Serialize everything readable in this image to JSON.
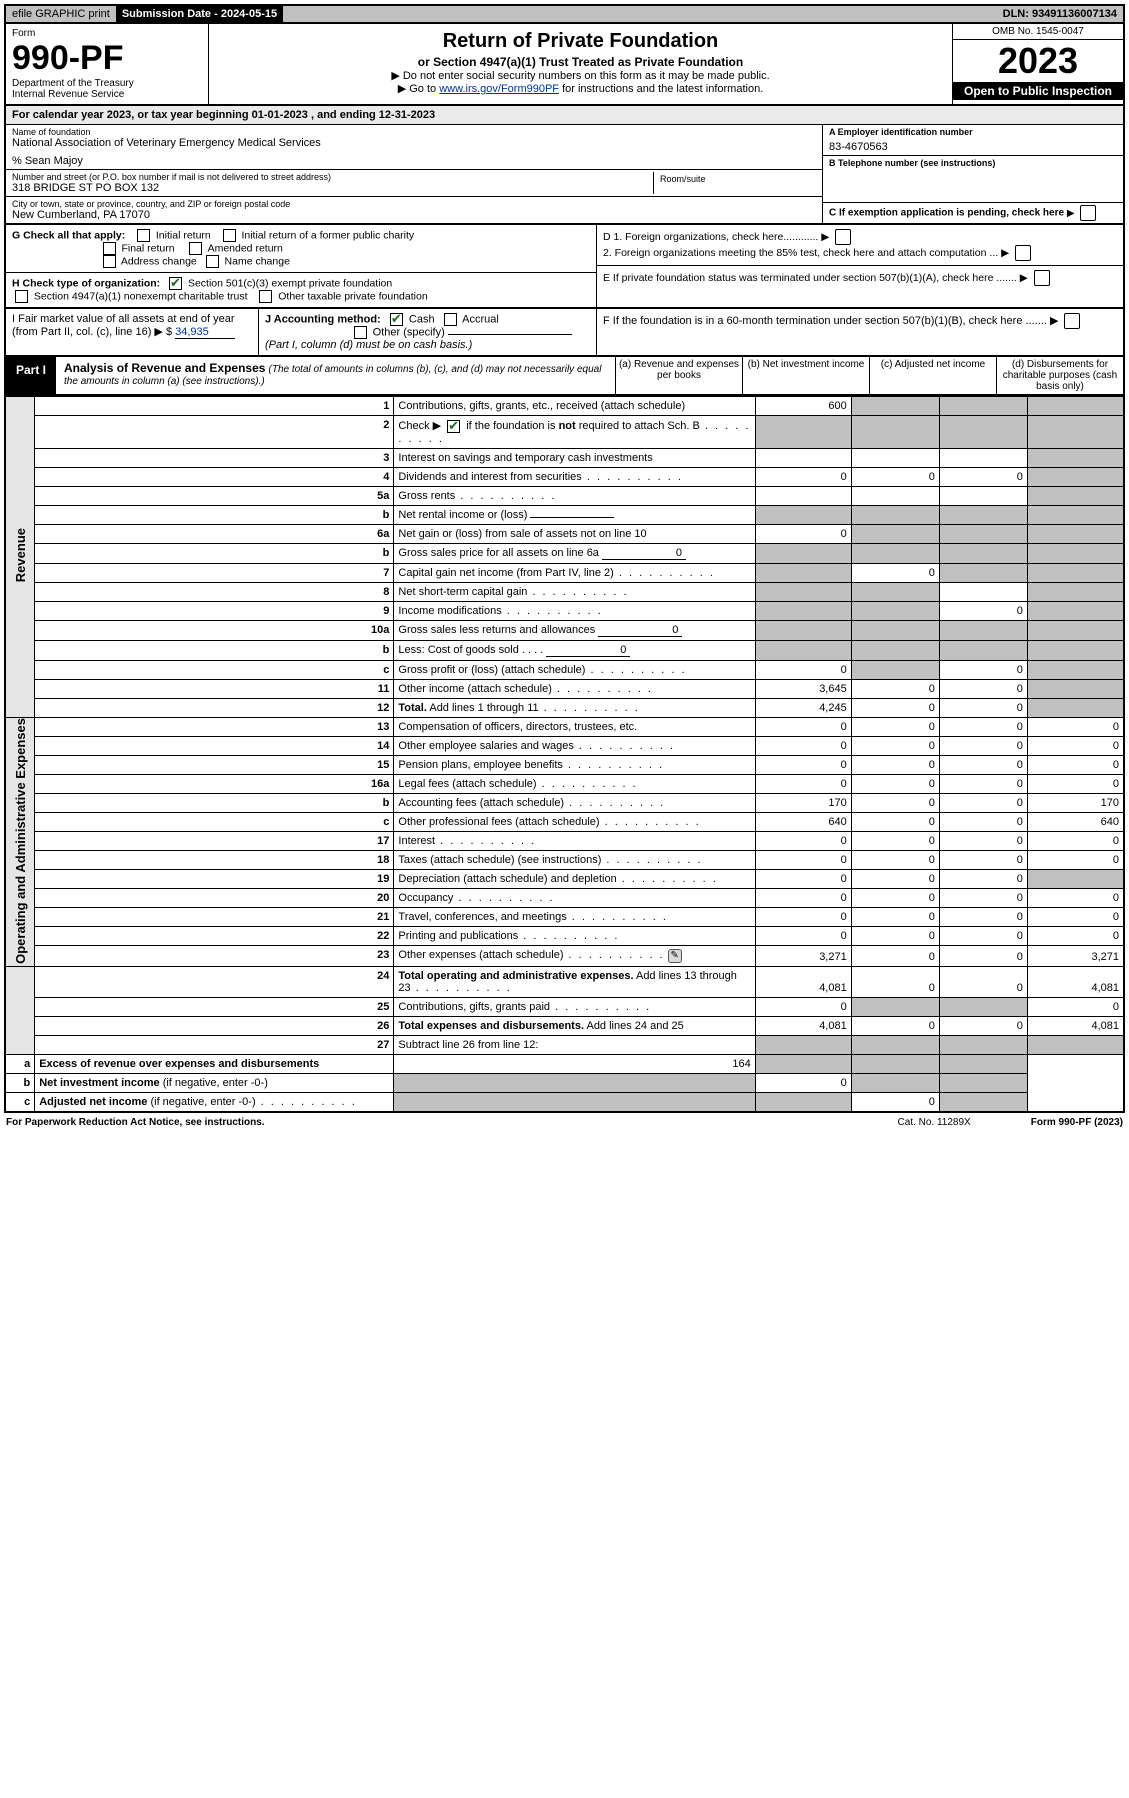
{
  "topbar": {
    "efile": "efile GRAPHIC print",
    "sub_label": "Submission Date - 2024-05-15",
    "dln": "DLN: 93491136007134"
  },
  "header": {
    "form_word": "Form",
    "form_num": "990-PF",
    "dept1": "Department of the Treasury",
    "dept2": "Internal Revenue Service",
    "title": "Return of Private Foundation",
    "subtitle": "or Section 4947(a)(1) Trust Treated as Private Foundation",
    "note1": "▶ Do not enter social security numbers on this form as it may be made public.",
    "note2_pre": "▶ Go to ",
    "note2_link": "www.irs.gov/Form990PF",
    "note2_post": " for instructions and the latest information.",
    "omb": "OMB No. 1545-0047",
    "year": "2023",
    "inspection": "Open to Public Inspection"
  },
  "calyear": "For calendar year 2023, or tax year beginning 01-01-2023                          , and ending 12-31-2023",
  "info": {
    "name_label": "Name of foundation",
    "name": "National Association of Veterinary Emergency Medical Services",
    "care_of": "% Sean Majoy",
    "addr_label": "Number and street (or P.O. box number if mail is not delivered to street address)",
    "addr": "318 BRIDGE ST PO BOX 132",
    "room_label": "Room/suite",
    "city_label": "City or town, state or province, country, and ZIP or foreign postal code",
    "city": "New Cumberland, PA  17070",
    "ein_label": "A Employer identification number",
    "ein": "83-4670563",
    "tel_label": "B Telephone number (see instructions)",
    "c_label": "C If exemption application is pending, check here"
  },
  "g": {
    "label": "G Check all that apply:",
    "o1": "Initial return",
    "o2": "Initial return of a former public charity",
    "o3": "Final return",
    "o4": "Amended return",
    "o5": "Address change",
    "o6": "Name change"
  },
  "h": {
    "label": "H Check type of organization:",
    "o1": "Section 501(c)(3) exempt private foundation",
    "o2": "Section 4947(a)(1) nonexempt charitable trust",
    "o3": "Other taxable private foundation"
  },
  "d": {
    "d1": "D 1. Foreign organizations, check here............",
    "d2": "2. Foreign organizations meeting the 85% test, check here and attach computation ...",
    "e": "E  If private foundation status was terminated under section 507(b)(1)(A), check here .......",
    "f": "F  If the foundation is in a 60-month termination under section 507(b)(1)(B), check here ......."
  },
  "i": {
    "label": "I Fair market value of all assets at end of year (from Part II, col. (c), line 16)",
    "val": "34,935"
  },
  "j": {
    "label": "J Accounting method:",
    "o1": "Cash",
    "o2": "Accrual",
    "o3": "Other (specify)",
    "note": "(Part I, column (d) must be on cash basis.)"
  },
  "part1": {
    "tab": "Part I",
    "title": "Analysis of Revenue and Expenses",
    "note": "(The total of amounts in columns (b), (c), and (d) may not necessarily equal the amounts in column (a) (see instructions).)",
    "col_a": "(a)  Revenue and expenses per books",
    "col_b": "(b)  Net investment income",
    "col_c": "(c)  Adjusted net income",
    "col_d": "(d)  Disbursements for charitable purposes (cash basis only)"
  },
  "sides": {
    "rev": "Revenue",
    "exp": "Operating and Administrative Expenses"
  },
  "rows": [
    {
      "n": "1",
      "d": "Contributions, gifts, grants, etc., received (attach schedule)",
      "a": "600",
      "b": "g",
      "c": "g",
      "dd": "g"
    },
    {
      "n": "2",
      "d": "Check ▶ [✔] if the foundation is <b>not</b> required to attach Sch. B",
      "dots": true,
      "a": "g",
      "b": "g",
      "c": "g",
      "dd": "g"
    },
    {
      "n": "3",
      "d": "Interest on savings and temporary cash investments",
      "a": "",
      "b": "",
      "c": "",
      "dd": "g"
    },
    {
      "n": "4",
      "d": "Dividends and interest from securities",
      "dots": true,
      "a": "0",
      "b": "0",
      "c": "0",
      "dd": "g"
    },
    {
      "n": "5a",
      "d": "Gross rents",
      "dots": true,
      "a": "",
      "b": "",
      "c": "",
      "dd": "g"
    },
    {
      "n": "b",
      "d": "Net rental income or (loss) <span class='mini-input'></span>",
      "a": "g",
      "b": "g",
      "c": "g",
      "dd": "g"
    },
    {
      "n": "6a",
      "d": "Net gain or (loss) from sale of assets not on line 10",
      "a": "0",
      "b": "g",
      "c": "g",
      "dd": "g"
    },
    {
      "n": "b",
      "d": "Gross sales price for all assets on line 6a <span class='mini-input'>0</span>",
      "a": "g",
      "b": "g",
      "c": "g",
      "dd": "g"
    },
    {
      "n": "7",
      "d": "Capital gain net income (from Part IV, line 2)",
      "dots": true,
      "a": "g",
      "b": "0",
      "c": "g",
      "dd": "g"
    },
    {
      "n": "8",
      "d": "Net short-term capital gain",
      "dots": true,
      "a": "g",
      "b": "g",
      "c": "",
      "dd": "g"
    },
    {
      "n": "9",
      "d": "Income modifications",
      "dots": true,
      "a": "g",
      "b": "g",
      "c": "0",
      "dd": "g"
    },
    {
      "n": "10a",
      "d": "Gross sales less returns and allowances <span class='mini-input'>0</span>",
      "a": "g",
      "b": "g",
      "c": "g",
      "dd": "g"
    },
    {
      "n": "b",
      "d": "Less: Cost of goods sold   .  .  .  . <span class='mini-input'>0</span>",
      "a": "g",
      "b": "g",
      "c": "g",
      "dd": "g"
    },
    {
      "n": "c",
      "d": "Gross profit or (loss) (attach schedule)",
      "dots": true,
      "a": "0",
      "b": "g",
      "c": "0",
      "dd": "g"
    },
    {
      "n": "11",
      "d": "Other income (attach schedule)",
      "dots": true,
      "a": "3,645",
      "b": "0",
      "c": "0",
      "dd": "g"
    },
    {
      "n": "12",
      "d": "<b>Total.</b> Add lines 1 through 11",
      "dots": true,
      "a": "4,245",
      "b": "0",
      "c": "0",
      "dd": "g"
    },
    {
      "n": "13",
      "d": "Compensation of officers, directors, trustees, etc.",
      "a": "0",
      "b": "0",
      "c": "0",
      "dd": "0"
    },
    {
      "n": "14",
      "d": "Other employee salaries and wages",
      "dots": true,
      "a": "0",
      "b": "0",
      "c": "0",
      "dd": "0"
    },
    {
      "n": "15",
      "d": "Pension plans, employee benefits",
      "dots": true,
      "a": "0",
      "b": "0",
      "c": "0",
      "dd": "0"
    },
    {
      "n": "16a",
      "d": "Legal fees (attach schedule)",
      "dots": true,
      "a": "0",
      "b": "0",
      "c": "0",
      "dd": "0"
    },
    {
      "n": "b",
      "d": "Accounting fees (attach schedule)",
      "dots": true,
      "a": "170",
      "b": "0",
      "c": "0",
      "dd": "170"
    },
    {
      "n": "c",
      "d": "Other professional fees (attach schedule)",
      "dots": true,
      "a": "640",
      "b": "0",
      "c": "0",
      "dd": "640"
    },
    {
      "n": "17",
      "d": "Interest",
      "dots": true,
      "a": "0",
      "b": "0",
      "c": "0",
      "dd": "0"
    },
    {
      "n": "18",
      "d": "Taxes (attach schedule) (see instructions)",
      "dots": true,
      "a": "0",
      "b": "0",
      "c": "0",
      "dd": "0"
    },
    {
      "n": "19",
      "d": "Depreciation (attach schedule) and depletion",
      "dots": true,
      "a": "0",
      "b": "0",
      "c": "0",
      "dd": "g"
    },
    {
      "n": "20",
      "d": "Occupancy",
      "dots": true,
      "a": "0",
      "b": "0",
      "c": "0",
      "dd": "0"
    },
    {
      "n": "21",
      "d": "Travel, conferences, and meetings",
      "dots": true,
      "a": "0",
      "b": "0",
      "c": "0",
      "dd": "0"
    },
    {
      "n": "22",
      "d": "Printing and publications",
      "dots": true,
      "a": "0",
      "b": "0",
      "c": "0",
      "dd": "0"
    },
    {
      "n": "23",
      "d": "Other expenses (attach schedule)",
      "dots": true,
      "icon": true,
      "a": "3,271",
      "b": "0",
      "c": "0",
      "dd": "3,271"
    },
    {
      "n": "24",
      "d": "<b>Total operating and administrative expenses.</b> Add lines 13 through 23",
      "dots": true,
      "a": "4,081",
      "b": "0",
      "c": "0",
      "dd": "4,081"
    },
    {
      "n": "25",
      "d": "Contributions, gifts, grants paid",
      "dots": true,
      "a": "0",
      "b": "g",
      "c": "g",
      "dd": "0"
    },
    {
      "n": "26",
      "d": "<b>Total expenses and disbursements.</b> Add lines 24 and 25",
      "a": "4,081",
      "b": "0",
      "c": "0",
      "dd": "4,081"
    },
    {
      "n": "27",
      "d": "Subtract line 26 from line 12:",
      "a": "g",
      "b": "g",
      "c": "g",
      "dd": "g"
    },
    {
      "n": "a",
      "d": "<b>Excess of revenue over expenses and disbursements</b>",
      "a": "164",
      "b": "g",
      "c": "g",
      "dd": "g"
    },
    {
      "n": "b",
      "d": "<b>Net investment income</b> (if negative, enter -0-)",
      "a": "g",
      "b": "0",
      "c": "g",
      "dd": "g"
    },
    {
      "n": "c",
      "d": "<b>Adjusted net income</b> (if negative, enter -0-)",
      "dots": true,
      "a": "g",
      "b": "g",
      "c": "0",
      "dd": "g"
    }
  ],
  "footer": {
    "l": "For Paperwork Reduction Act Notice, see instructions.",
    "c": "Cat. No. 11289X",
    "r": "Form 990-PF (2023)"
  }
}
